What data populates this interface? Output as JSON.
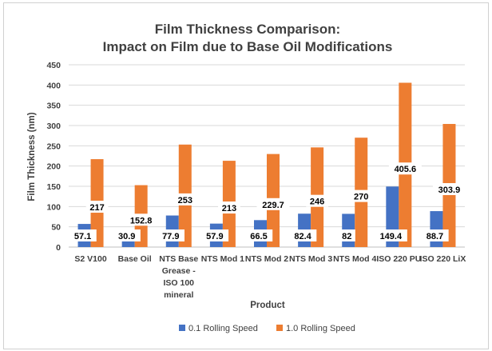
{
  "chart_data": {
    "type": "bar",
    "title": [
      "Film Thickness Comparison:",
      "Impact on Film due to Base Oil Modifications"
    ],
    "xlabel": "Product",
    "ylabel": "Film Thickness (nm)",
    "ylim": [
      0,
      450
    ],
    "yticks": [
      0,
      50,
      100,
      150,
      200,
      250,
      300,
      350,
      400,
      450
    ],
    "grid": true,
    "legend": "bottom",
    "categories": [
      [
        "S2 V100"
      ],
      [
        "Base Oil"
      ],
      [
        "NTS Base",
        "Grease -",
        "ISO 100",
        "mineral"
      ],
      [
        "NTS Mod 1"
      ],
      [
        "NTS Mod 2"
      ],
      [
        "NTS Mod 3"
      ],
      [
        "NTS Mod 4"
      ],
      [
        "ISO 220 PU"
      ],
      [
        "ISO 220 LiX"
      ]
    ],
    "series": [
      {
        "name": "0.1 Rolling Speed",
        "color": "#4472c4",
        "values": [
          57.1,
          30.9,
          77.9,
          57.9,
          66.5,
          82.4,
          82,
          149.4,
          88.7
        ],
        "labels": [
          "57.1",
          "30.9",
          "77.9",
          "57.9",
          "66.5",
          "82.4",
          "82",
          "149.4",
          "88.7"
        ]
      },
      {
        "name": "1.0 Rolling Speed",
        "color": "#ed7d31",
        "values": [
          217,
          152.8,
          253,
          213,
          229.7,
          246,
          270,
          405.6,
          303.9
        ],
        "labels": [
          "217",
          "152.8",
          "253",
          "213",
          "229.7",
          "246",
          "270",
          "405.6",
          "303.9"
        ]
      }
    ]
  }
}
